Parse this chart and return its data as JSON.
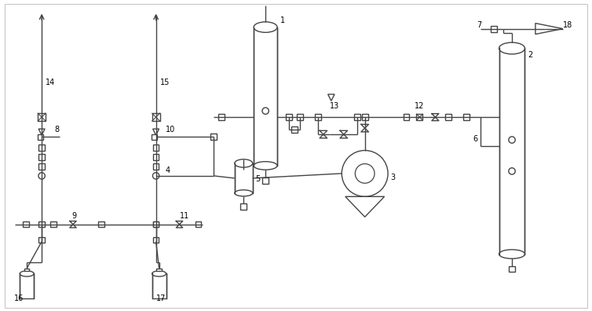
{
  "bg_color": "#ffffff",
  "line_color": "#444444",
  "line_width": 1.0,
  "fig_width": 7.54,
  "fig_height": 3.96
}
